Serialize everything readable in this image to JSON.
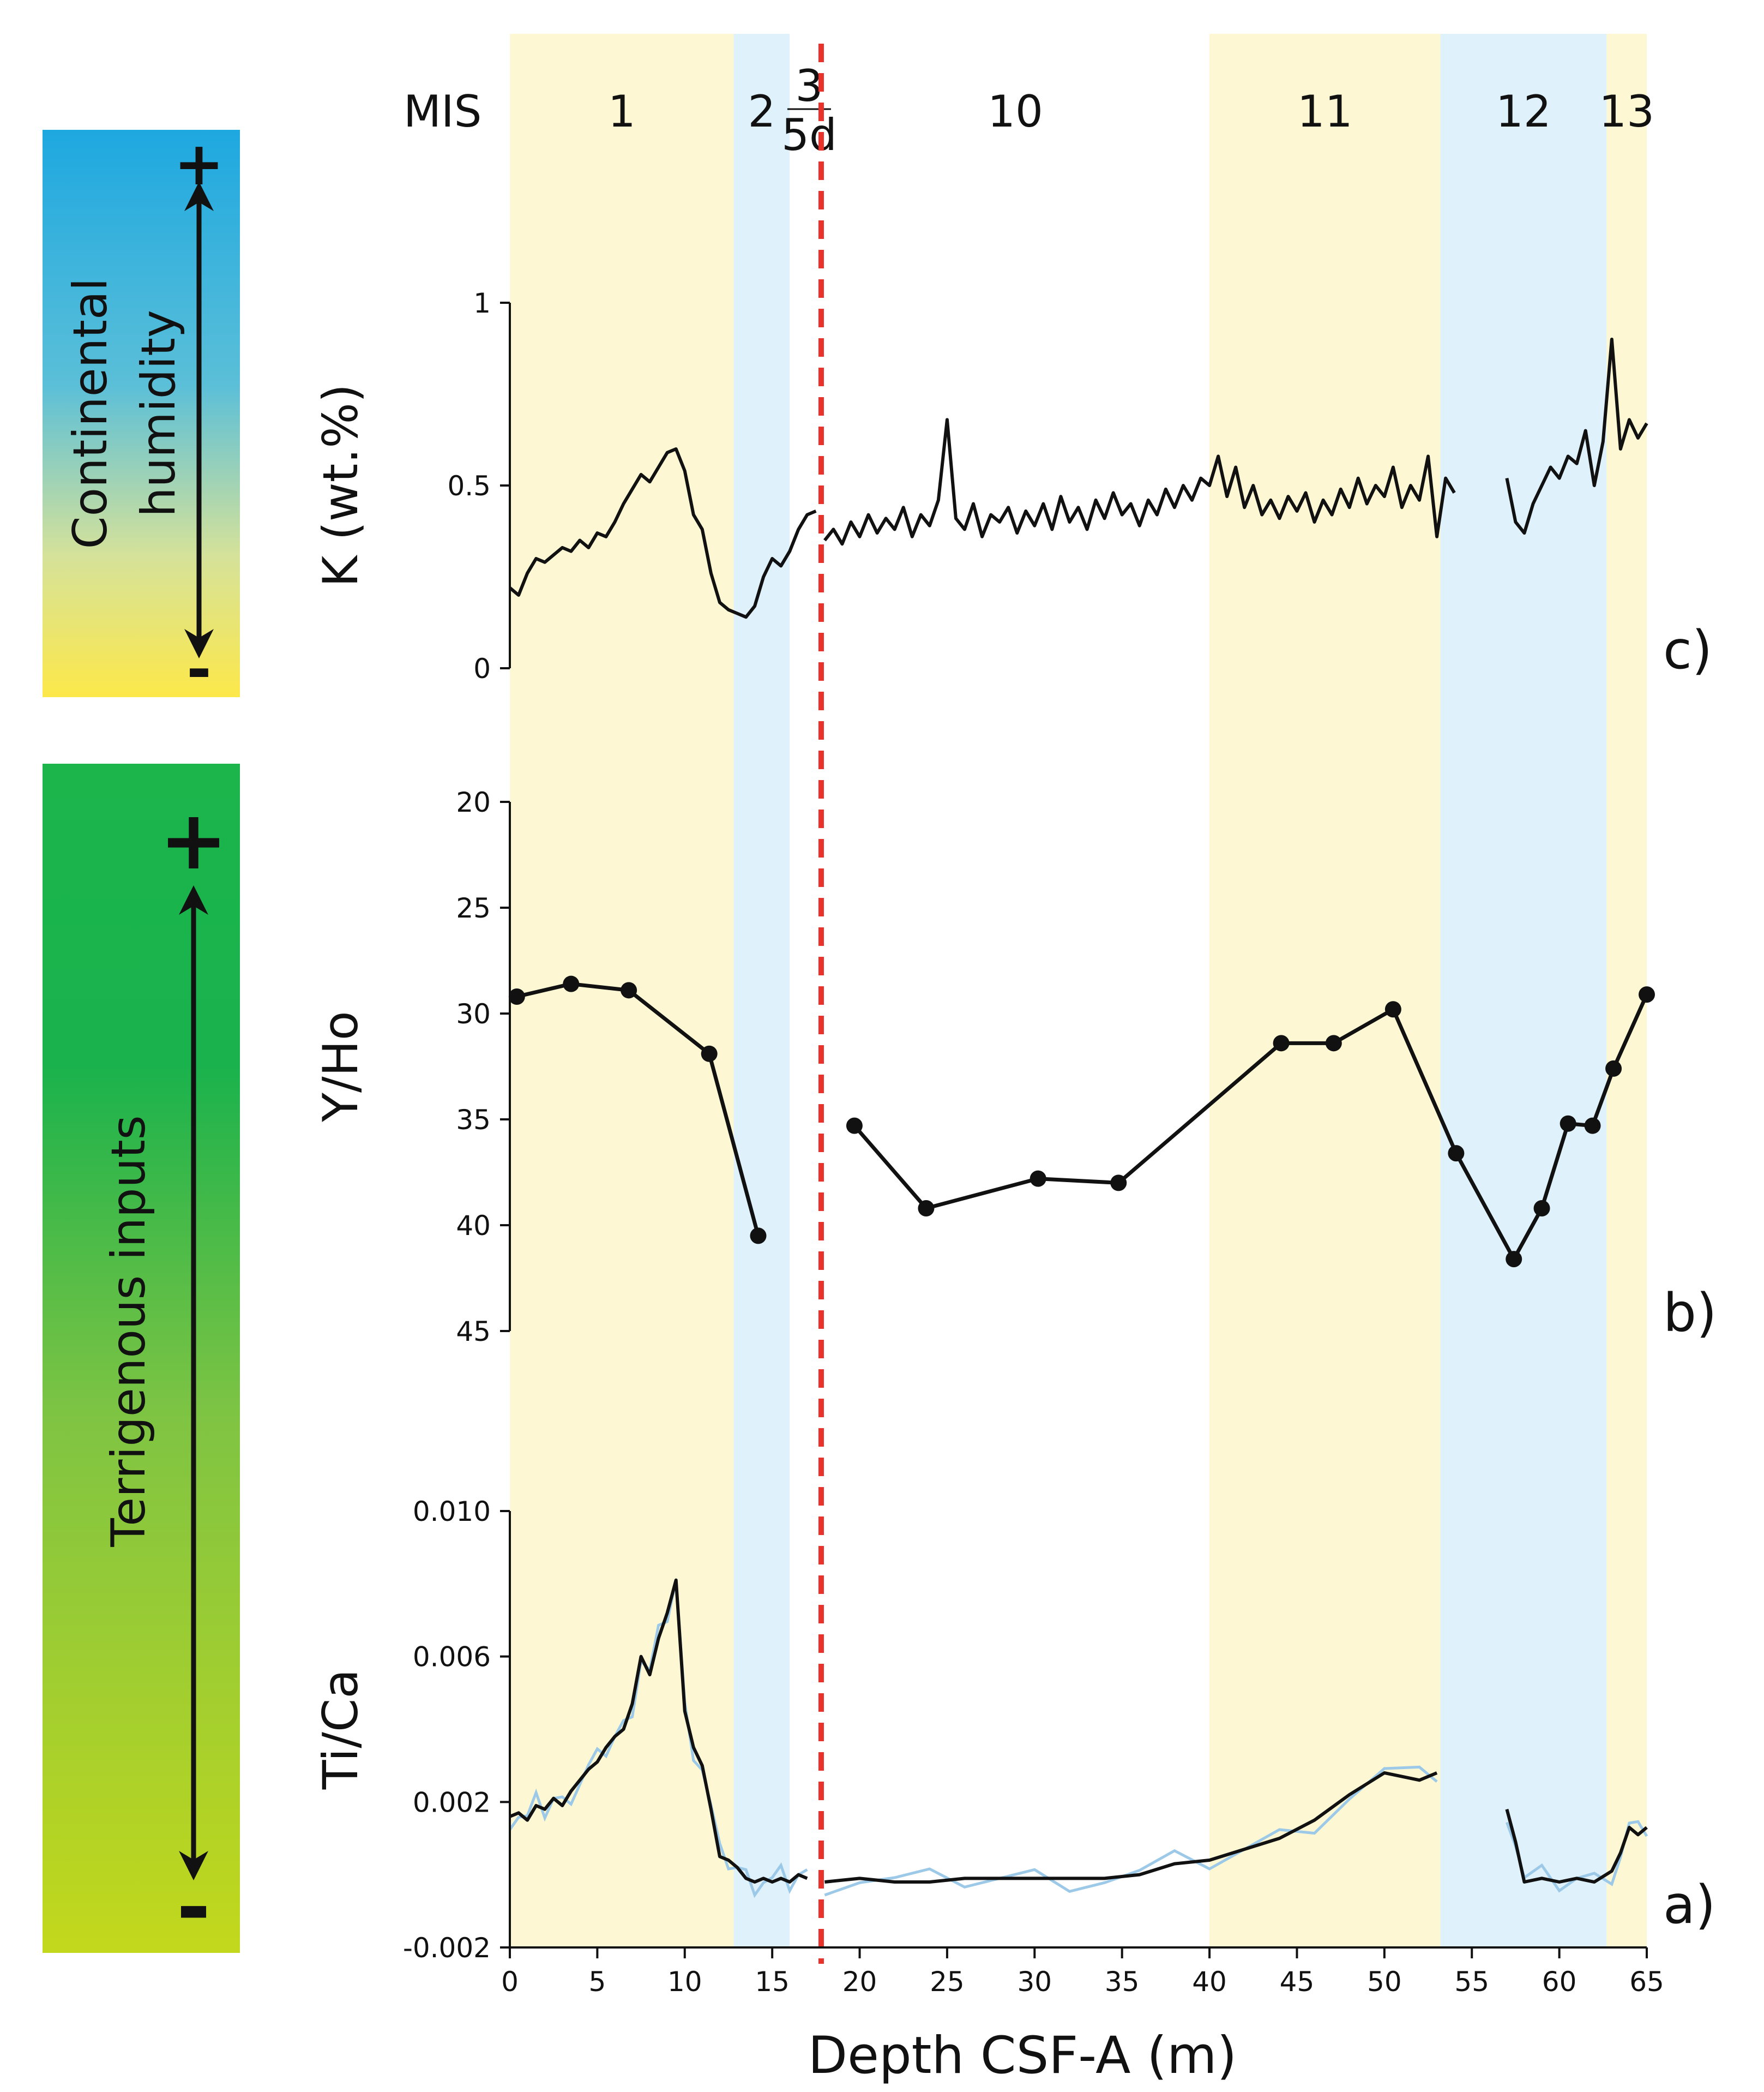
{
  "chart_data": {
    "type": "line",
    "colors": {
      "interglacial": "#fdf8d3",
      "glacial": "#dff1fa",
      "boundary": "#e8322b",
      "line": "#111111",
      "raw": "#9cc9e8",
      "humid_top": "#1ea8e0",
      "humid_bottom": "#fde84a",
      "terr_top": "#1cb54c",
      "terr_bottom": "#c3d81c"
    },
    "x_axis": {
      "label": "Depth CSF-A (m)",
      "range": [
        0,
        65
      ],
      "ticks": [
        0,
        5,
        10,
        15,
        20,
        25,
        30,
        35,
        40,
        45,
        50,
        55,
        60,
        65
      ],
      "tick_labels": [
        "0",
        "5",
        "10",
        "15",
        "20",
        "25",
        "30",
        "35",
        "40",
        "45",
        "50",
        "55",
        "60",
        "65"
      ]
    },
    "mis": {
      "title": "MIS",
      "stages": [
        {
          "label": "1",
          "from": 0,
          "to": 12.8,
          "kind": "interglacial"
        },
        {
          "label": "2",
          "from": 12.8,
          "to": 16,
          "kind": "glacial"
        },
        {
          "label": "10",
          "from": 17.8,
          "to": 40,
          "kind": "glacial-unshaded"
        },
        {
          "label": "11",
          "from": 40,
          "to": 53.2,
          "kind": "interglacial"
        },
        {
          "label": "12",
          "from": 53.2,
          "to": 62.7,
          "kind": "glacial"
        },
        {
          "label": "13",
          "from": 62.7,
          "to": 65,
          "kind": "interglacial"
        }
      ],
      "boundary_depth": 17.8,
      "boundary_label_top": "3",
      "boundary_label_bottom": "5d"
    },
    "panels": [
      {
        "id": "c",
        "letter": "c)",
        "ylabel": "K (wt.%)",
        "yrange": [
          0,
          1
        ],
        "inverted": false,
        "ticks": [
          0,
          0.5,
          1
        ],
        "tick_labels": [
          "0",
          "0.5",
          "1"
        ],
        "segments": [
          {
            "x": [
              0,
              0.5,
              1,
              1.5,
              2,
              2.5,
              3,
              3.5,
              4,
              4.5,
              5,
              5.5,
              6,
              6.5,
              7,
              7.5,
              8,
              8.5,
              9,
              9.5,
              10,
              10.5,
              11,
              11.5,
              12,
              12.5,
              13,
              13.5,
              14,
              14.5,
              15,
              15.5,
              16,
              16.5,
              17,
              17.5
            ],
            "y": [
              0.22,
              0.2,
              0.26,
              0.3,
              0.29,
              0.31,
              0.33,
              0.32,
              0.35,
              0.33,
              0.37,
              0.36,
              0.4,
              0.45,
              0.49,
              0.53,
              0.51,
              0.55,
              0.59,
              0.6,
              0.54,
              0.42,
              0.38,
              0.26,
              0.18,
              0.16,
              0.15,
              0.14,
              0.17,
              0.25,
              0.3,
              0.28,
              0.32,
              0.38,
              0.42,
              0.43
            ]
          },
          {
            "x": [
              18,
              18.5,
              19,
              19.5,
              20,
              20.5,
              21,
              21.5,
              22,
              22.5,
              23,
              23.5,
              24,
              24.5,
              25,
              25.5,
              26,
              26.5,
              27,
              27.5,
              28,
              28.5,
              29,
              29.5,
              30,
              30.5,
              31,
              31.5,
              32,
              32.5,
              33,
              33.5,
              34,
              34.5,
              35,
              35.5,
              36,
              36.5,
              37,
              37.5,
              38,
              38.5,
              39,
              39.5,
              40,
              40.5,
              41,
              41.5,
              42,
              42.5,
              43,
              43.5,
              44,
              44.5,
              45,
              45.5,
              46,
              46.5,
              47,
              47.5,
              48,
              48.5,
              49,
              49.5,
              50,
              50.5,
              51,
              51.5,
              52,
              52.5,
              53,
              53.5,
              54
            ],
            "y": [
              0.35,
              0.38,
              0.34,
              0.4,
              0.36,
              0.42,
              0.37,
              0.41,
              0.38,
              0.44,
              0.36,
              0.42,
              0.39,
              0.46,
              0.68,
              0.41,
              0.38,
              0.45,
              0.36,
              0.42,
              0.4,
              0.44,
              0.37,
              0.43,
              0.39,
              0.45,
              0.38,
              0.47,
              0.4,
              0.44,
              0.38,
              0.46,
              0.41,
              0.48,
              0.42,
              0.45,
              0.39,
              0.46,
              0.42,
              0.49,
              0.44,
              0.5,
              0.46,
              0.52,
              0.5,
              0.58,
              0.47,
              0.55,
              0.44,
              0.5,
              0.42,
              0.46,
              0.41,
              0.47,
              0.43,
              0.48,
              0.4,
              0.46,
              0.42,
              0.49,
              0.44,
              0.52,
              0.45,
              0.5,
              0.47,
              0.55,
              0.44,
              0.5,
              0.46,
              0.58,
              0.36,
              0.52,
              0.48
            ]
          },
          {
            "x": [
              57,
              57.5,
              58,
              58.5,
              59,
              59.5,
              60,
              60.5,
              61,
              61.5,
              62,
              62.5,
              63,
              63.5,
              64,
              64.5,
              65
            ],
            "y": [
              0.52,
              0.4,
              0.37,
              0.45,
              0.5,
              0.55,
              0.52,
              0.58,
              0.56,
              0.65,
              0.5,
              0.62,
              0.9,
              0.6,
              0.68,
              0.63,
              0.67
            ]
          }
        ]
      },
      {
        "id": "b",
        "letter": "b)",
        "ylabel": "Y/Ho",
        "yrange": [
          20,
          45
        ],
        "inverted": true,
        "ticks": [
          20,
          25,
          30,
          35,
          40,
          45
        ],
        "tick_labels": [
          "20",
          "25",
          "30",
          "35",
          "40",
          "45"
        ],
        "segments": [
          {
            "x": [
              0.4,
              3.5,
              6.8,
              11.4,
              14.2
            ],
            "y": [
              29.2,
              28.6,
              28.9,
              31.9,
              40.5
            ]
          },
          {
            "x": [
              19.7,
              23.8,
              30.2,
              34.8,
              44.1,
              47.1,
              50.5,
              54.1,
              57.4,
              59,
              60.5,
              61.9,
              63.1,
              65
            ],
            "y": [
              35.3,
              39.2,
              37.8,
              38,
              31.4,
              31.4,
              29.8,
              36.6,
              41.6,
              39.2,
              35.2,
              35.3,
              32.6,
              29.1
            ]
          }
        ]
      },
      {
        "id": "a",
        "letter": "a)",
        "ylabel": "Ti/Ca",
        "yrange": [
          -0.002,
          0.01
        ],
        "inverted": false,
        "ticks": [
          -0.002,
          0.002,
          0.006,
          0.01
        ],
        "tick_labels": [
          "-0.002",
          "0.002",
          "0.006",
          "0.010"
        ],
        "segments": [
          {
            "x": [
              0,
              0.5,
              1,
              1.5,
              2,
              2.5,
              3,
              3.5,
              4,
              4.5,
              5,
              5.5,
              6,
              6.5,
              7,
              7.5,
              8,
              8.5,
              9,
              9.5,
              10,
              10.5,
              11,
              11.5,
              12,
              12.5,
              13,
              13.5,
              14,
              14.5,
              15,
              15.5,
              16,
              16.5,
              17
            ],
            "y": [
              0.0016,
              0.0017,
              0.0015,
              0.0019,
              0.0018,
              0.0021,
              0.0019,
              0.0023,
              0.0026,
              0.0029,
              0.0031,
              0.0035,
              0.0038,
              0.004,
              0.0047,
              0.006,
              0.0055,
              0.0065,
              0.0072,
              0.0081,
              0.0045,
              0.0035,
              0.003,
              0.0018,
              0.0005,
              0.0004,
              0.0002,
              -0.0001,
              -0.0002,
              -0.0001,
              -0.0002,
              -0.0001,
              -0.0002,
              0.0,
              -0.0001
            ]
          },
          {
            "x": [
              18,
              20,
              22,
              24,
              26,
              28,
              30,
              32,
              34,
              36,
              38,
              40,
              42,
              44,
              46,
              48,
              50,
              52,
              53
            ],
            "y": [
              -0.0002,
              -0.0001,
              -0.0002,
              -0.0002,
              -0.0001,
              -0.0001,
              -0.0001,
              -0.0001,
              -0.0001,
              0.0,
              0.0003,
              0.0004,
              0.0007,
              0.001,
              0.0015,
              0.0022,
              0.0028,
              0.0026,
              0.0028
            ]
          },
          {
            "x": [
              57,
              57.5,
              58,
              59,
              60,
              61,
              62,
              63,
              63.5,
              64,
              64.5,
              65
            ],
            "y": [
              0.0018,
              0.0009,
              -0.0002,
              -0.0001,
              -0.0002,
              -0.0001,
              -0.0002,
              0.0001,
              0.0006,
              0.0013,
              0.0011,
              0.0013
            ]
          }
        ]
      }
    ],
    "side_bars": [
      {
        "label_line1": "Continental",
        "label_line2": "humidity",
        "plus": "+",
        "minus": "-"
      },
      {
        "label_line1": "Terrigenous inputs",
        "label_line2": "",
        "plus": "+",
        "minus": "-"
      }
    ]
  }
}
